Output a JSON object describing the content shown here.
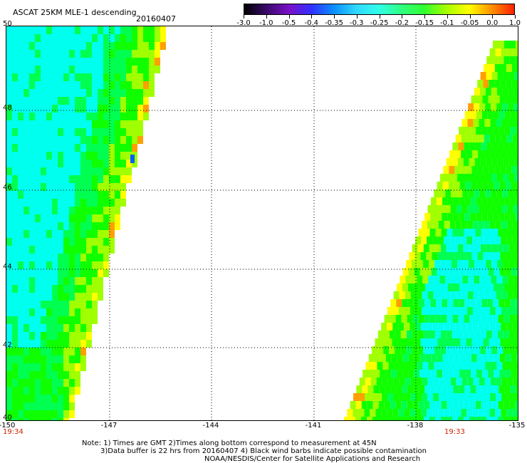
{
  "header": {
    "title": "ASCAT 25KM MLE-1 descending",
    "date": "20160407"
  },
  "colorbar": {
    "labels": [
      "-3.0",
      "-1.0",
      "-0.5",
      "-0.4",
      "-0.35",
      "-0.3",
      "-0.25",
      "-0.2",
      "-0.15",
      "-0.1",
      "-0.05",
      "0.0",
      "1.0"
    ],
    "colors": [
      "#000000",
      "#3a0a6a",
      "#7a10c8",
      "#3030ff",
      "#0a90ff",
      "#30d8ff",
      "#30ffe8",
      "#30ff80",
      "#30ff30",
      "#a8ff00",
      "#ffff00",
      "#ff9000",
      "#ff2000"
    ]
  },
  "map": {
    "y_ticks": [
      "50",
      "48",
      "46",
      "44",
      "42",
      "40"
    ],
    "x_ticks": [
      "-150",
      "-147",
      "-144",
      "-141",
      "-138",
      "-135"
    ],
    "lat_range": [
      40,
      50
    ],
    "lon_range": [
      -150,
      -135
    ],
    "left_swath_time": "19:34",
    "right_swath_time": "19:33",
    "swath_colors": {
      "cyan": "#00ffee",
      "green": "#00ff50",
      "bright_green": "#10ff00",
      "yellow_green": "#a0ff00",
      "yellow": "#ffff00",
      "orange": "#ffa000",
      "blue": "#0060ff"
    }
  },
  "notes": {
    "line1": "Note: 1) Times are GMT 2)Times along bottom correspond to measurement at 45N",
    "line2": "3)Data buffer is 22 hrs from 20160407 4) Black wind barbs indicate possible contamination",
    "line3": "NOAA/NESDIS/Center for Satellite Applications and Research"
  }
}
